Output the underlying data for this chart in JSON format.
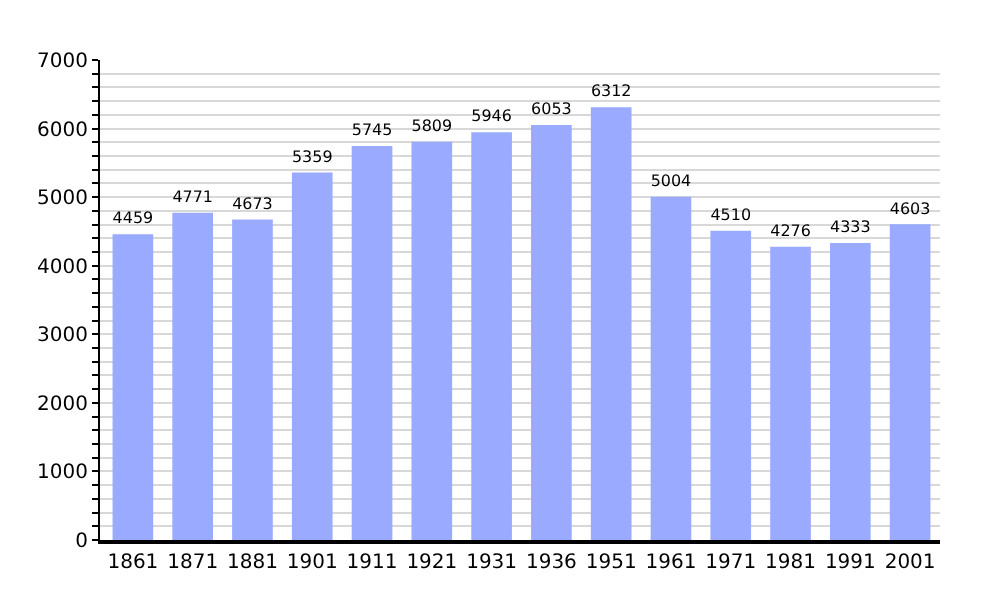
{
  "chart_data": {
    "type": "bar",
    "categories": [
      "1861",
      "1871",
      "1881",
      "1901",
      "1911",
      "1921",
      "1931",
      "1936",
      "1951",
      "1961",
      "1971",
      "1981",
      "1991",
      "2001"
    ],
    "values": [
      4459,
      4771,
      4673,
      5359,
      5745,
      5809,
      5946,
      6053,
      6312,
      5004,
      4510,
      4276,
      4333,
      4603
    ],
    "color": "#99aaff",
    "data_labels": true,
    "ylim": [
      0,
      7000
    ],
    "yticks": [
      0,
      {
        "value": 200,
        "label": null
      },
      {
        "value": 400,
        "label": null
      },
      {
        "value": 600,
        "label": null
      },
      {
        "value": 800,
        "label": null
      },
      1000,
      {
        "value": 1200,
        "label": null
      },
      {
        "value": 1400,
        "label": null
      },
      {
        "value": 1600,
        "label": null
      },
      {
        "value": 1800,
        "label": null
      },
      2000,
      {
        "value": 2200,
        "label": null
      },
      {
        "value": 2400,
        "label": null
      },
      {
        "value": 2600,
        "label": null
      },
      {
        "value": 2800,
        "label": null
      },
      3000,
      {
        "value": 3200,
        "label": null
      },
      {
        "value": 3400,
        "label": null
      },
      {
        "value": 3600,
        "label": null
      },
      {
        "value": 3800,
        "label": null
      },
      4000,
      {
        "value": 4200,
        "label": null
      },
      {
        "value": 4400,
        "label": null
      },
      {
        "value": 4600,
        "label": null
      },
      {
        "value": 4800,
        "label": null
      },
      5000,
      {
        "value": 5200,
        "label": null
      },
      {
        "value": 5400,
        "label": null
      },
      {
        "value": 5600,
        "label": null
      },
      {
        "value": 5800,
        "label": null
      },
      6000,
      {
        "value": 6200,
        "label": null
      },
      {
        "value": 6400,
        "label": null
      },
      {
        "value": 6600,
        "label": null
      },
      {
        "value": 6800,
        "label": null
      },
      7000
    ],
    "grid": "y"
  }
}
